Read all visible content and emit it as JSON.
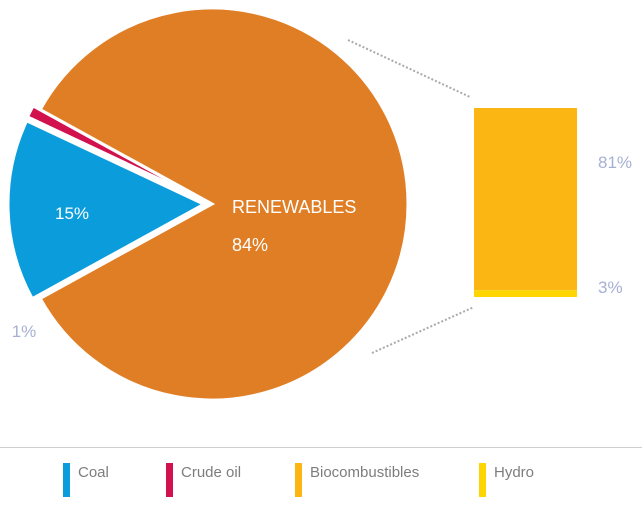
{
  "chart_data": {
    "type": "pie",
    "slices": [
      {
        "name": "Coal",
        "value": 15,
        "label": "15%",
        "color": "#0b9ddb"
      },
      {
        "name": "Crude oil",
        "value": 1,
        "label": "1%",
        "color": "#d2114f"
      },
      {
        "name": "RENEWABLES",
        "value": 84,
        "label": "84%",
        "color": "#e07e25"
      }
    ],
    "breakdown": {
      "of": "RENEWABLES",
      "stack": [
        {
          "name": "Biocombustibles",
          "value": 81,
          "label": "81%",
          "color": "#fbb614"
        },
        {
          "name": "Hydro",
          "value": 3,
          "label": "3%",
          "color": "#fed500"
        }
      ]
    },
    "legend": {
      "position": "bottom",
      "items": [
        {
          "label": "Coal",
          "color": "#0b9ddb"
        },
        {
          "label": "Crude oil",
          "color": "#d2114f"
        },
        {
          "label": "Biocombustibles",
          "color": "#fbb614"
        },
        {
          "label": "Hydro",
          "color": "#fed500"
        }
      ]
    }
  }
}
